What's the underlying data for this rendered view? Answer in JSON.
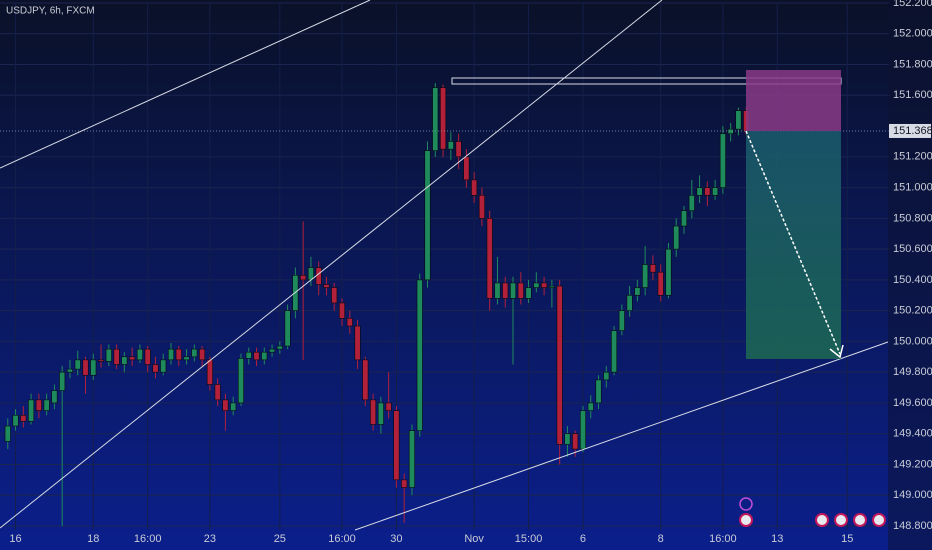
{
  "chart_data": {
    "type": "candlestick",
    "title": "USDJPY, 6h, FXCM",
    "up_color": "#1f8a5b",
    "down_color": "#b3203a",
    "ylim": [
      148.8,
      152.2
    ],
    "yticks": [
      {
        "value": 148.8,
        "label": "148.800"
      },
      {
        "value": 149.0,
        "label": "149.000"
      },
      {
        "value": 149.2,
        "label": "149.200"
      },
      {
        "value": 149.4,
        "label": "149.400"
      },
      {
        "value": 149.6,
        "label": "149.600"
      },
      {
        "value": 149.8,
        "label": "149.800"
      },
      {
        "value": 150.0,
        "label": "150.000"
      },
      {
        "value": 150.2,
        "label": "150.200"
      },
      {
        "value": 150.4,
        "label": "150.400"
      },
      {
        "value": 150.6,
        "label": "150.600"
      },
      {
        "value": 150.8,
        "label": "150.800"
      },
      {
        "value": 151.0,
        "label": "151.000"
      },
      {
        "value": 151.2,
        "label": "151.200"
      },
      {
        "value": 151.6,
        "label": "151.600"
      },
      {
        "value": 151.8,
        "label": "151.800"
      },
      {
        "value": 152.0,
        "label": "152.000"
      },
      {
        "value": 152.2,
        "label": "152.200"
      }
    ],
    "xlim": [
      -1,
      113.5
    ],
    "xticks": [
      {
        "value": 1,
        "label": "16"
      },
      {
        "value": 11,
        "label": "18"
      },
      {
        "value": 18,
        "label": "16:00"
      },
      {
        "value": 26,
        "label": "23"
      },
      {
        "value": 35,
        "label": "25"
      },
      {
        "value": 43,
        "label": "16:00"
      },
      {
        "value": 50,
        "label": "30"
      },
      {
        "value": 60,
        "label": "Nov"
      },
      {
        "value": 67,
        "label": "15:00"
      },
      {
        "value": 74,
        "label": "6"
      },
      {
        "value": 84,
        "label": "8"
      },
      {
        "value": 92,
        "label": "16:00"
      },
      {
        "value": 99,
        "label": "13"
      },
      {
        "value": 108,
        "label": "15"
      }
    ],
    "current_price": 151.368,
    "open": [
      149.35,
      149.45,
      149.52,
      149.48,
      149.62,
      149.55,
      149.6,
      149.68,
      149.8,
      149.82,
      149.88,
      149.78,
      149.88,
      149.87,
      149.95,
      149.85,
      149.9,
      149.88,
      149.95,
      149.85,
      149.8,
      149.88,
      149.95,
      149.88,
      149.9,
      149.95,
      149.88,
      149.72,
      149.62,
      149.55,
      149.6,
      149.89,
      149.93,
      149.88,
      149.93,
      149.95,
      149.97,
      150.2,
      150.43,
      150.4,
      150.48,
      150.37,
      150.35,
      150.25,
      150.15,
      150.1,
      149.88,
      149.62,
      149.46,
      149.6,
      149.55,
      149.1,
      149.05,
      149.42,
      150.4,
      151.24,
      151.65,
      151.25,
      151.3,
      151.2,
      151.05,
      150.95,
      150.8,
      150.28,
      150.38,
      150.28,
      150.38,
      150.28,
      150.35,
      150.38,
      150.35,
      150.36,
      149.33,
      149.4,
      149.3,
      149.55,
      149.6,
      149.75,
      149.8,
      150.07,
      150.2,
      150.3,
      150.35,
      150.5,
      150.45,
      150.3,
      150.6,
      150.75,
      150.85,
      150.95,
      151.0,
      150.95,
      151.0,
      151.35,
      151.38,
      151.5
    ],
    "high": [
      149.5,
      149.56,
      149.58,
      149.66,
      149.66,
      149.66,
      149.72,
      149.84,
      149.88,
      149.94,
      149.9,
      149.92,
      149.98,
      149.98,
      149.98,
      149.93,
      149.96,
      149.98,
      149.97,
      149.9,
      149.92,
      149.99,
      149.97,
      149.95,
      149.98,
      149.97,
      149.9,
      149.76,
      149.66,
      149.64,
      149.92,
      149.96,
      149.96,
      149.96,
      149.98,
      150.0,
      150.24,
      150.48,
      150.78,
      150.55,
      150.52,
      150.42,
      150.38,
      150.28,
      150.2,
      150.14,
      149.9,
      149.66,
      149.64,
      149.8,
      149.58,
      149.14,
      149.46,
      150.44,
      151.3,
      151.68,
      151.67,
      151.36,
      151.35,
      151.25,
      151.1,
      151.0,
      150.85,
      150.55,
      150.42,
      150.42,
      150.45,
      150.4,
      150.45,
      150.42,
      150.4,
      150.4,
      149.45,
      149.42,
      149.58,
      149.65,
      149.78,
      149.84,
      150.1,
      150.24,
      150.36,
      150.4,
      150.62,
      150.56,
      150.5,
      150.64,
      150.8,
      150.88,
      151.05,
      151.08,
      151.04,
      151.05,
      151.4,
      151.42,
      151.52,
      151.52
    ],
    "low": [
      149.3,
      149.42,
      149.44,
      149.46,
      149.5,
      149.52,
      149.56,
      148.8,
      149.76,
      149.78,
      149.66,
      149.75,
      149.83,
      149.84,
      149.82,
      149.8,
      149.84,
      149.86,
      149.8,
      149.76,
      149.78,
      149.85,
      149.84,
      149.85,
      149.87,
      149.84,
      149.68,
      149.58,
      149.42,
      149.52,
      149.58,
      149.85,
      149.84,
      149.85,
      149.9,
      149.92,
      149.95,
      150.15,
      149.88,
      150.36,
      150.3,
      150.3,
      150.2,
      150.1,
      150.05,
      149.82,
      149.58,
      149.42,
      149.4,
      149.5,
      149.05,
      148.82,
      149.0,
      149.38,
      150.35,
      151.2,
      151.2,
      151.18,
      151.12,
      151.0,
      150.9,
      150.75,
      150.2,
      150.24,
      150.22,
      149.85,
      150.24,
      150.25,
      150.32,
      150.3,
      150.22,
      149.2,
      149.25,
      149.25,
      149.28,
      149.5,
      149.56,
      149.7,
      149.78,
      150.04,
      150.16,
      150.26,
      150.3,
      150.4,
      150.26,
      150.28,
      150.55,
      150.7,
      150.8,
      150.9,
      150.88,
      150.92,
      150.96,
      151.3,
      151.34,
      151.34
    ],
    "close": [
      149.45,
      149.52,
      149.48,
      149.62,
      149.55,
      149.62,
      149.68,
      149.8,
      149.82,
      149.88,
      149.78,
      149.88,
      149.87,
      149.95,
      149.85,
      149.9,
      149.88,
      149.95,
      149.85,
      149.8,
      149.88,
      149.95,
      149.88,
      149.9,
      149.95,
      149.88,
      149.72,
      149.62,
      149.55,
      149.6,
      149.89,
      149.93,
      149.88,
      149.93,
      149.95,
      149.97,
      150.2,
      150.43,
      150.4,
      150.48,
      150.37,
      150.35,
      150.25,
      150.15,
      150.1,
      149.88,
      149.62,
      149.46,
      149.6,
      149.55,
      149.1,
      149.05,
      149.42,
      150.4,
      151.24,
      151.65,
      151.25,
      151.3,
      151.2,
      151.05,
      150.95,
      150.8,
      150.28,
      150.38,
      150.28,
      150.38,
      150.28,
      150.35,
      150.38,
      150.35,
      150.36,
      149.33,
      149.4,
      149.3,
      149.55,
      149.6,
      149.75,
      149.8,
      150.07,
      150.2,
      150.3,
      150.35,
      150.5,
      150.45,
      150.3,
      150.6,
      150.75,
      150.85,
      150.95,
      151.0,
      150.95,
      151.0,
      151.35,
      151.38,
      151.5,
      151.368
    ]
  }
}
